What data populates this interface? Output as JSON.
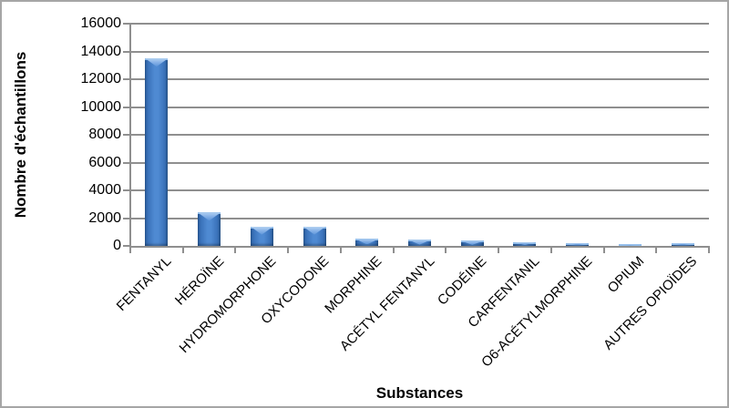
{
  "figure": {
    "background": "#ffffff",
    "border_color": "#a6a6a6"
  },
  "chart_data": {
    "type": "bar",
    "title": "",
    "xlabel": "Substances",
    "ylabel": "Nombre d'échantillons",
    "categories": [
      "FENTANYL",
      "HÉROÏNE",
      "HYDROMORPHONE",
      "OXYCODONE",
      "MORPHINE",
      "ACÉTYL FENTANYL",
      "CODÉINE",
      "CARFENTANIL",
      "O6-ACÉTYLMORPHINE",
      "OPIUM",
      "AUTRES OPIOÏDES"
    ],
    "values": [
      13500,
      2400,
      1400,
      1400,
      500,
      450,
      370,
      290,
      210,
      120,
      200
    ],
    "ylim": [
      0,
      16000
    ],
    "yticks": [
      0,
      2000,
      4000,
      6000,
      8000,
      10000,
      12000,
      14000,
      16000
    ],
    "grid": true,
    "legend": null,
    "colors": {
      "bar_edge": "#2a5c9b",
      "bar_center": "#4f8ad2",
      "bar_cap_light": "#b3d2f1",
      "bar_cap_dark": "#5d95da",
      "grid": "#8f8f8f",
      "axis": "#8f8f8f",
      "text": "#000000"
    }
  }
}
